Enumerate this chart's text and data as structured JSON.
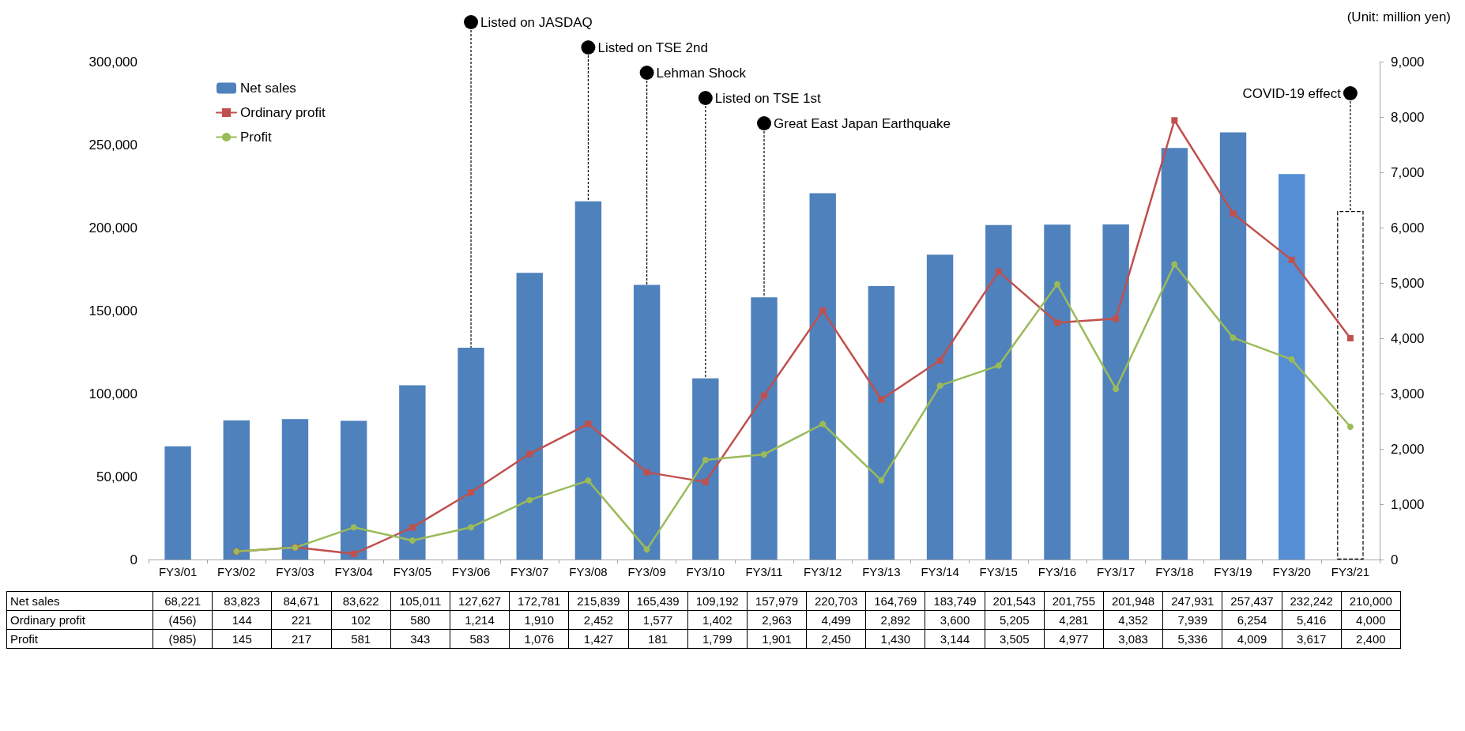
{
  "chart_data": {
    "type": "bar",
    "categories": [
      "FY3/01",
      "FY3/02",
      "FY3/03",
      "FY3/04",
      "FY3/05",
      "FY3/06",
      "FY3/07",
      "FY3/08",
      "FY3/09",
      "FY3/10",
      "FY3/11",
      "FY3/12",
      "FY3/13",
      "FY3/14",
      "FY3/15",
      "FY3/16",
      "FY3/17",
      "FY3/18",
      "FY3/19",
      "FY3/20",
      "FY3/21"
    ],
    "series": [
      {
        "name": "Net sales",
        "color": "#4f81bd",
        "colors": [
          "#4f81bd",
          "#4f81bd",
          "#4f81bd",
          "#4f81bd",
          "#4f81bd",
          "#4f81bd",
          "#4f81bd",
          "#4f81bd",
          "#4f81bd",
          "#4f81bd",
          "#4f81bd",
          "#4f81bd",
          "#4f81bd",
          "#4f81bd",
          "#4f81bd",
          "#4f81bd",
          "#4f81bd",
          "#4f81bd",
          "#4f81bd",
          "#558ed5",
          "#ffffff"
        ],
        "values": [
          68221,
          83823,
          84671,
          83622,
          105011,
          127627,
          172781,
          215839,
          165439,
          109192,
          157979,
          220703,
          164769,
          183749,
          201543,
          201755,
          201948,
          247931,
          257437,
          232242,
          210000
        ],
        "value_labels": [
          "68,221",
          "83,823",
          "84,671",
          "83,622",
          "105,011",
          "127,627",
          "172,781",
          "215,839",
          "165,439",
          "109,192",
          "157,979",
          "220,703",
          "164,769",
          "183,749",
          "201,543",
          "201,755",
          "201,948",
          "247,931",
          "257,437",
          "232,242",
          "210,000"
        ]
      },
      {
        "name": "Ordinary profit",
        "type": "line",
        "axis": "y2",
        "marker": "square",
        "color": "#c0504d",
        "values": [
          null,
          144,
          221,
          102,
          580,
          1214,
          1910,
          2452,
          1577,
          1402,
          2963,
          4499,
          2892,
          3600,
          5205,
          4281,
          4352,
          7939,
          6254,
          5416,
          4000
        ],
        "value_labels": [
          "(456)",
          "144",
          "221",
          "102",
          "580",
          "1,214",
          "1,910",
          "2,452",
          "1,577",
          "1,402",
          "2,963",
          "4,499",
          "2,892",
          "3,600",
          "5,205",
          "4,281",
          "4,352",
          "7,939",
          "6,254",
          "5,416",
          "4,000"
        ]
      },
      {
        "name": "Profit",
        "type": "line",
        "axis": "y2",
        "marker": "circle",
        "color": "#9bbb59",
        "values": [
          null,
          145,
          217,
          581,
          343,
          583,
          1076,
          1427,
          181,
          1799,
          1901,
          2450,
          1430,
          3144,
          3505,
          4977,
          3083,
          5336,
          4009,
          3617,
          2400
        ],
        "value_labels": [
          "(985)",
          "145",
          "217",
          "581",
          "343",
          "583",
          "1,076",
          "1,427",
          "181",
          "1,799",
          "1,901",
          "2,450",
          "1,430",
          "3,144",
          "3,505",
          "4,977",
          "3,083",
          "5,336",
          "4,009",
          "3,617",
          "2,400"
        ]
      }
    ],
    "ylim": [
      0,
      300000
    ],
    "yticks": [
      {
        "value": 0,
        "label": "0"
      },
      {
        "value": 50000,
        "label": "50,000"
      },
      {
        "value": 100000,
        "label": "100,000"
      },
      {
        "value": 150000,
        "label": "150,000"
      },
      {
        "value": 200000,
        "label": "200,000"
      },
      {
        "value": 250000,
        "label": "250,000"
      },
      {
        "value": 300000,
        "label": "300,000"
      }
    ],
    "y2lim": [
      0,
      9000
    ],
    "y2ticks": [
      {
        "value": 0,
        "label": "0"
      },
      {
        "value": 1000,
        "label": "1,000"
      },
      {
        "value": 2000,
        "label": "2,000"
      },
      {
        "value": 3000,
        "label": "3,000"
      },
      {
        "value": 4000,
        "label": "4,000"
      },
      {
        "value": 5000,
        "label": "5,000"
      },
      {
        "value": 6000,
        "label": "6,000"
      },
      {
        "value": 7000,
        "label": "7,000"
      },
      {
        "value": 8000,
        "label": "8,000"
      },
      {
        "value": 9000,
        "label": "9,000"
      }
    ],
    "grid": false,
    "legend": "top left",
    "annotations": [
      "(Unit: million yen)",
      {
        "text": "Listed on JASDAQ",
        "x": "FY3/06",
        "y": 127627
      },
      {
        "text": "Listed on TSE 2nd",
        "x": "FY3/08",
        "y": 215839
      },
      {
        "text": "Lehman Shock",
        "x": "FY3/09",
        "y": 165439
      },
      {
        "text": "Listed on TSE 1st",
        "x": "FY3/10",
        "y": 109192
      },
      {
        "text": "Great East Japan Earthquake",
        "x": "FY3/11",
        "y": 157979
      },
      {
        "text": "COVID-19 effect",
        "x": "FY3/21",
        "y": 210000
      }
    ]
  }
}
